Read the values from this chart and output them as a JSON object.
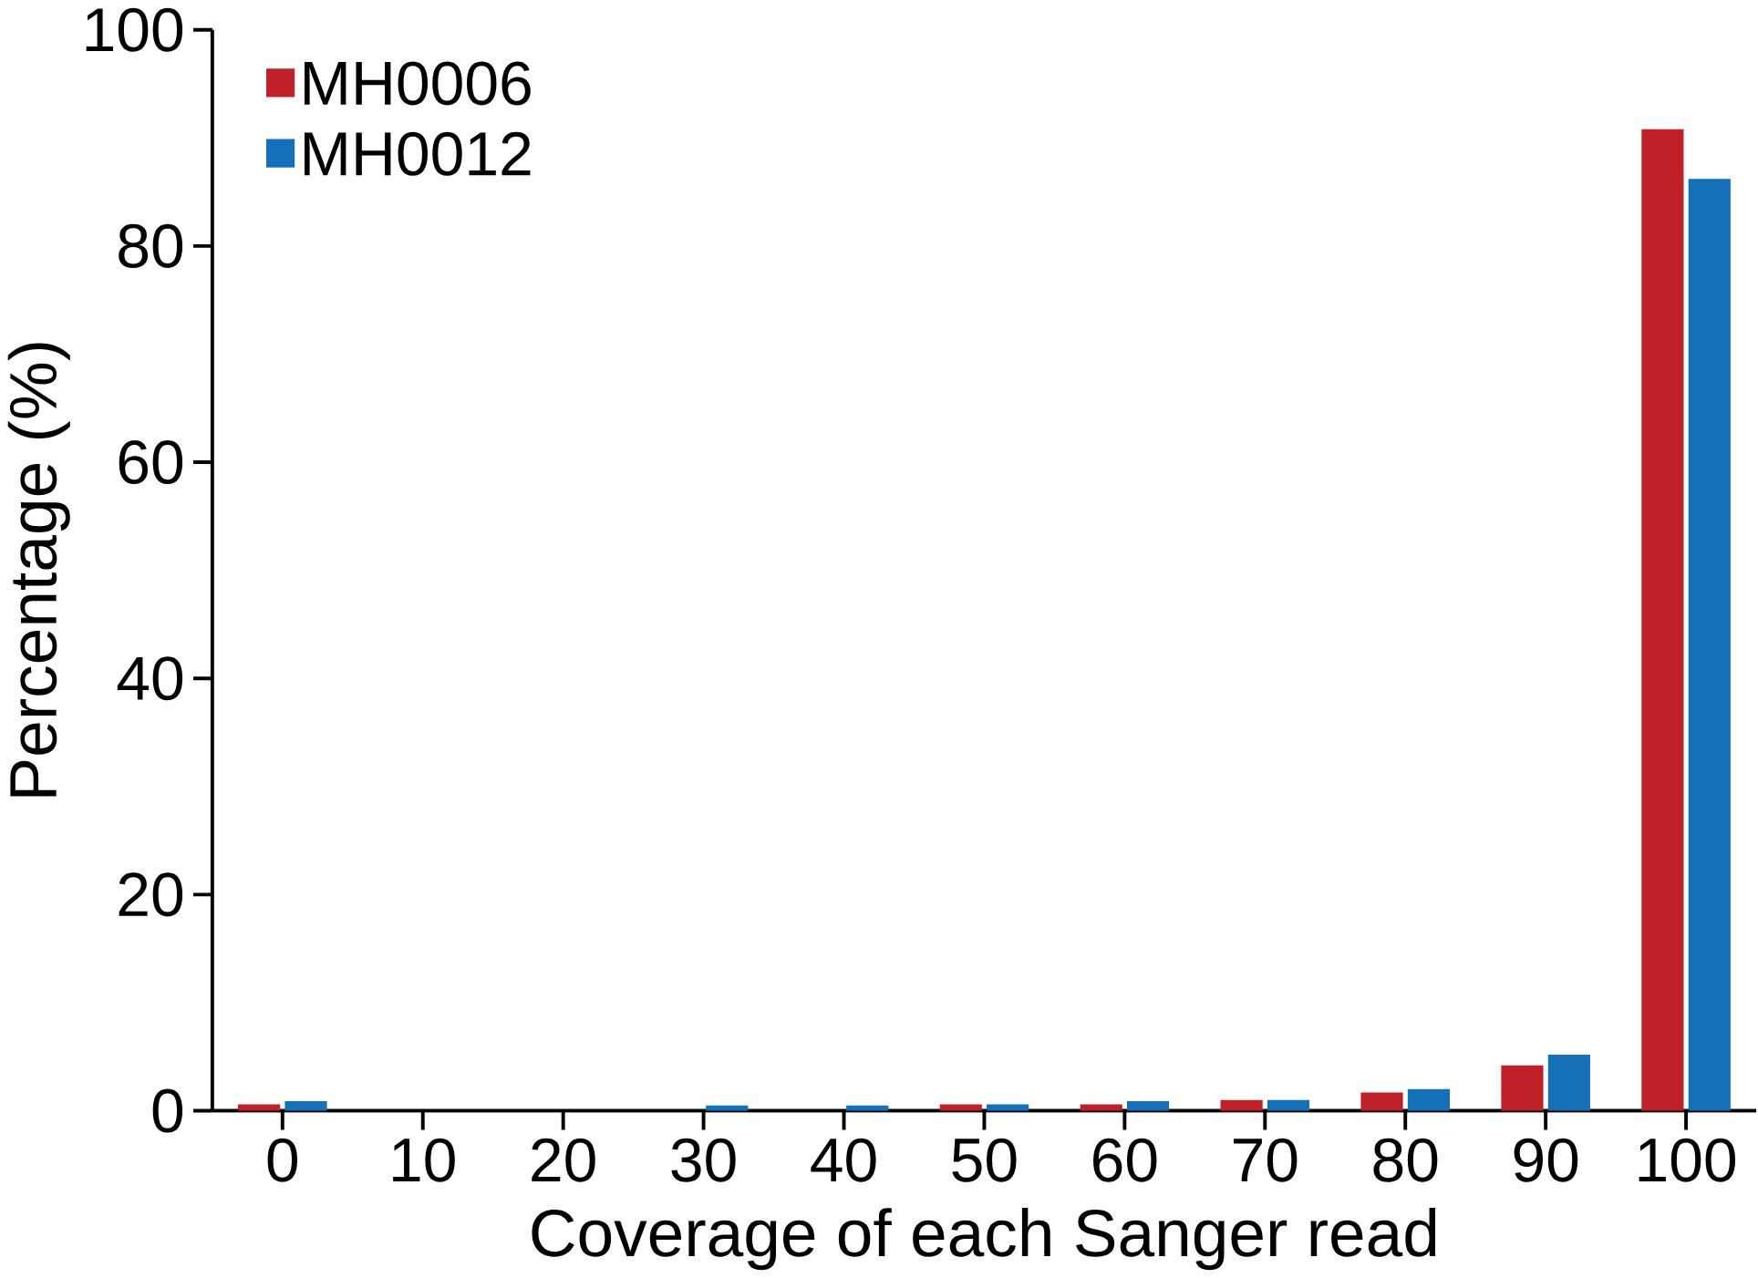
{
  "chart_data": {
    "type": "bar",
    "xlabel": "Coverage of each Sanger read",
    "ylabel": "Percentage (%)",
    "categories": [
      "0",
      "10",
      "20",
      "30",
      "40",
      "50",
      "60",
      "70",
      "80",
      "90",
      "100"
    ],
    "series": [
      {
        "name": "MH0006",
        "color": "#c0202a",
        "values": [
          0.6,
          0,
          0,
          0,
          0,
          0.6,
          0.6,
          1.0,
          1.7,
          4.2,
          90.8
        ]
      },
      {
        "name": "MH0012",
        "color": "#1570b8",
        "values": [
          0.9,
          0,
          0,
          0.5,
          0.5,
          0.6,
          0.9,
          1.0,
          2.0,
          5.2,
          86.2
        ]
      }
    ],
    "ylim": [
      0,
      100
    ],
    "yticks": [
      0,
      20,
      40,
      60,
      80,
      100
    ],
    "grid": false,
    "legend": "top left"
  }
}
